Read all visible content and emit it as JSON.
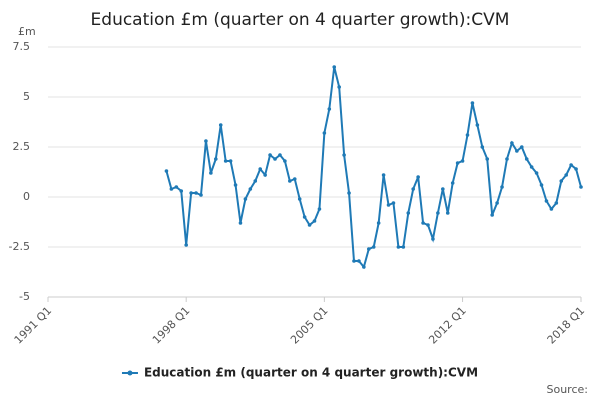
{
  "chart_data": {
    "type": "line",
    "title": "Education £m (quarter on 4 quarter growth):CVM",
    "ylabel": "£m",
    "source": "Source:",
    "categories": [
      "1991 Q1",
      null,
      null,
      null,
      null,
      null,
      null,
      null,
      null,
      null,
      null,
      null,
      null,
      null,
      null,
      null,
      null,
      null,
      null,
      null,
      null,
      null,
      null,
      null,
      null,
      null,
      null,
      null,
      "1998 Q1",
      null,
      null,
      null,
      null,
      null,
      null,
      null,
      null,
      null,
      null,
      null,
      null,
      null,
      null,
      null,
      null,
      null,
      null,
      null,
      null,
      null,
      null,
      null,
      null,
      null,
      null,
      null,
      "2005 Q1",
      null,
      null,
      null,
      null,
      null,
      null,
      null,
      null,
      null,
      null,
      null,
      null,
      null,
      null,
      null,
      null,
      null,
      null,
      null,
      null,
      null,
      null,
      null,
      null,
      null,
      null,
      null,
      "2012 Q1",
      null,
      null,
      null,
      null,
      null,
      null,
      null,
      null,
      null,
      null,
      null,
      null,
      null,
      null,
      null,
      null,
      null,
      null,
      null,
      null,
      null,
      null,
      null,
      "2018 Q1"
    ],
    "series": [
      {
        "name": "Education £m (quarter on 4 quarter growth):CVM",
        "color": "#1f7ab6",
        "values": [
          null,
          null,
          null,
          null,
          null,
          null,
          null,
          null,
          null,
          null,
          null,
          null,
          null,
          null,
          null,
          null,
          null,
          null,
          null,
          null,
          null,
          null,
          null,
          null,
          1.3,
          0.4,
          0.5,
          0.3,
          -2.4,
          0.2,
          0.2,
          0.1,
          2.8,
          1.2,
          1.9,
          3.6,
          1.8,
          1.8,
          0.6,
          -1.3,
          -0.1,
          0.4,
          0.8,
          1.4,
          1.1,
          2.1,
          1.9,
          2.1,
          1.8,
          0.8,
          0.9,
          -0.1,
          -1.0,
          -1.4,
          -1.2,
          -0.6,
          3.2,
          4.4,
          6.5,
          5.5,
          2.1,
          0.2,
          -3.2,
          -3.2,
          -3.5,
          -2.6,
          -2.5,
          -1.3,
          1.1,
          -0.4,
          -0.3,
          -2.5,
          -2.5,
          -0.8,
          0.4,
          1.0,
          -1.3,
          -1.4,
          -2.1,
          -0.8,
          0.4,
          -0.8,
          0.7,
          1.7,
          1.8,
          3.1,
          4.7,
          3.6,
          2.5,
          1.9,
          -0.9,
          -0.3,
          0.5,
          1.9,
          2.7,
          2.3,
          2.5,
          1.9,
          1.5,
          1.2,
          0.6,
          -0.2,
          -0.6,
          -0.3,
          0.8,
          1.1,
          1.6,
          1.4,
          0.5
        ]
      }
    ],
    "ylim": [
      -5,
      7.5
    ],
    "yticks": [
      -5,
      -2.5,
      0,
      2.5,
      5,
      7.5
    ],
    "grid": true,
    "legend": "bottom"
  }
}
